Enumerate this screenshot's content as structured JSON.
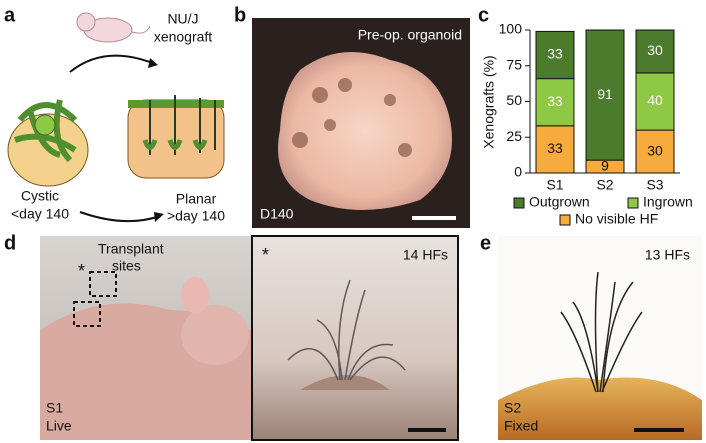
{
  "panels": {
    "a": {
      "label": "a",
      "mouse_line1": "NU/J",
      "mouse_line2": "xenograft",
      "left_line1": "Cystic",
      "left_line2": "<day 140",
      "right_line1": "Planar",
      "right_line2": ">day 140"
    },
    "b": {
      "label": "b",
      "caption": "Pre-op. organoid",
      "stage": "D140"
    },
    "c": {
      "label": "c"
    },
    "d": {
      "label": "d",
      "sites_line1": "Transplant",
      "sites_line2": "sites",
      "star_left": "*",
      "star_right": "*",
      "count": "14 HFs",
      "sample": "S1",
      "state": "Live"
    },
    "e": {
      "label": "e",
      "count": "13 HFs",
      "sample": "S2",
      "state": "Fixed"
    }
  },
  "chart_data": {
    "type": "stacked_bar",
    "ylabel": "Xenografts (%)",
    "categories": [
      "S1",
      "S2",
      "S3"
    ],
    "series": [
      {
        "name": "No visible HF",
        "color": "#f7ab3d",
        "values": [
          33,
          9,
          30
        ]
      },
      {
        "name": "Ingrown",
        "color": "#8fc844",
        "values": [
          33,
          0,
          40
        ]
      },
      {
        "name": "Outgrown",
        "color": "#4b7b2b",
        "values": [
          33,
          91,
          30
        ]
      }
    ],
    "ylim": [
      0,
      100
    ],
    "yticks": [
      0,
      25,
      50,
      75,
      100
    ]
  }
}
